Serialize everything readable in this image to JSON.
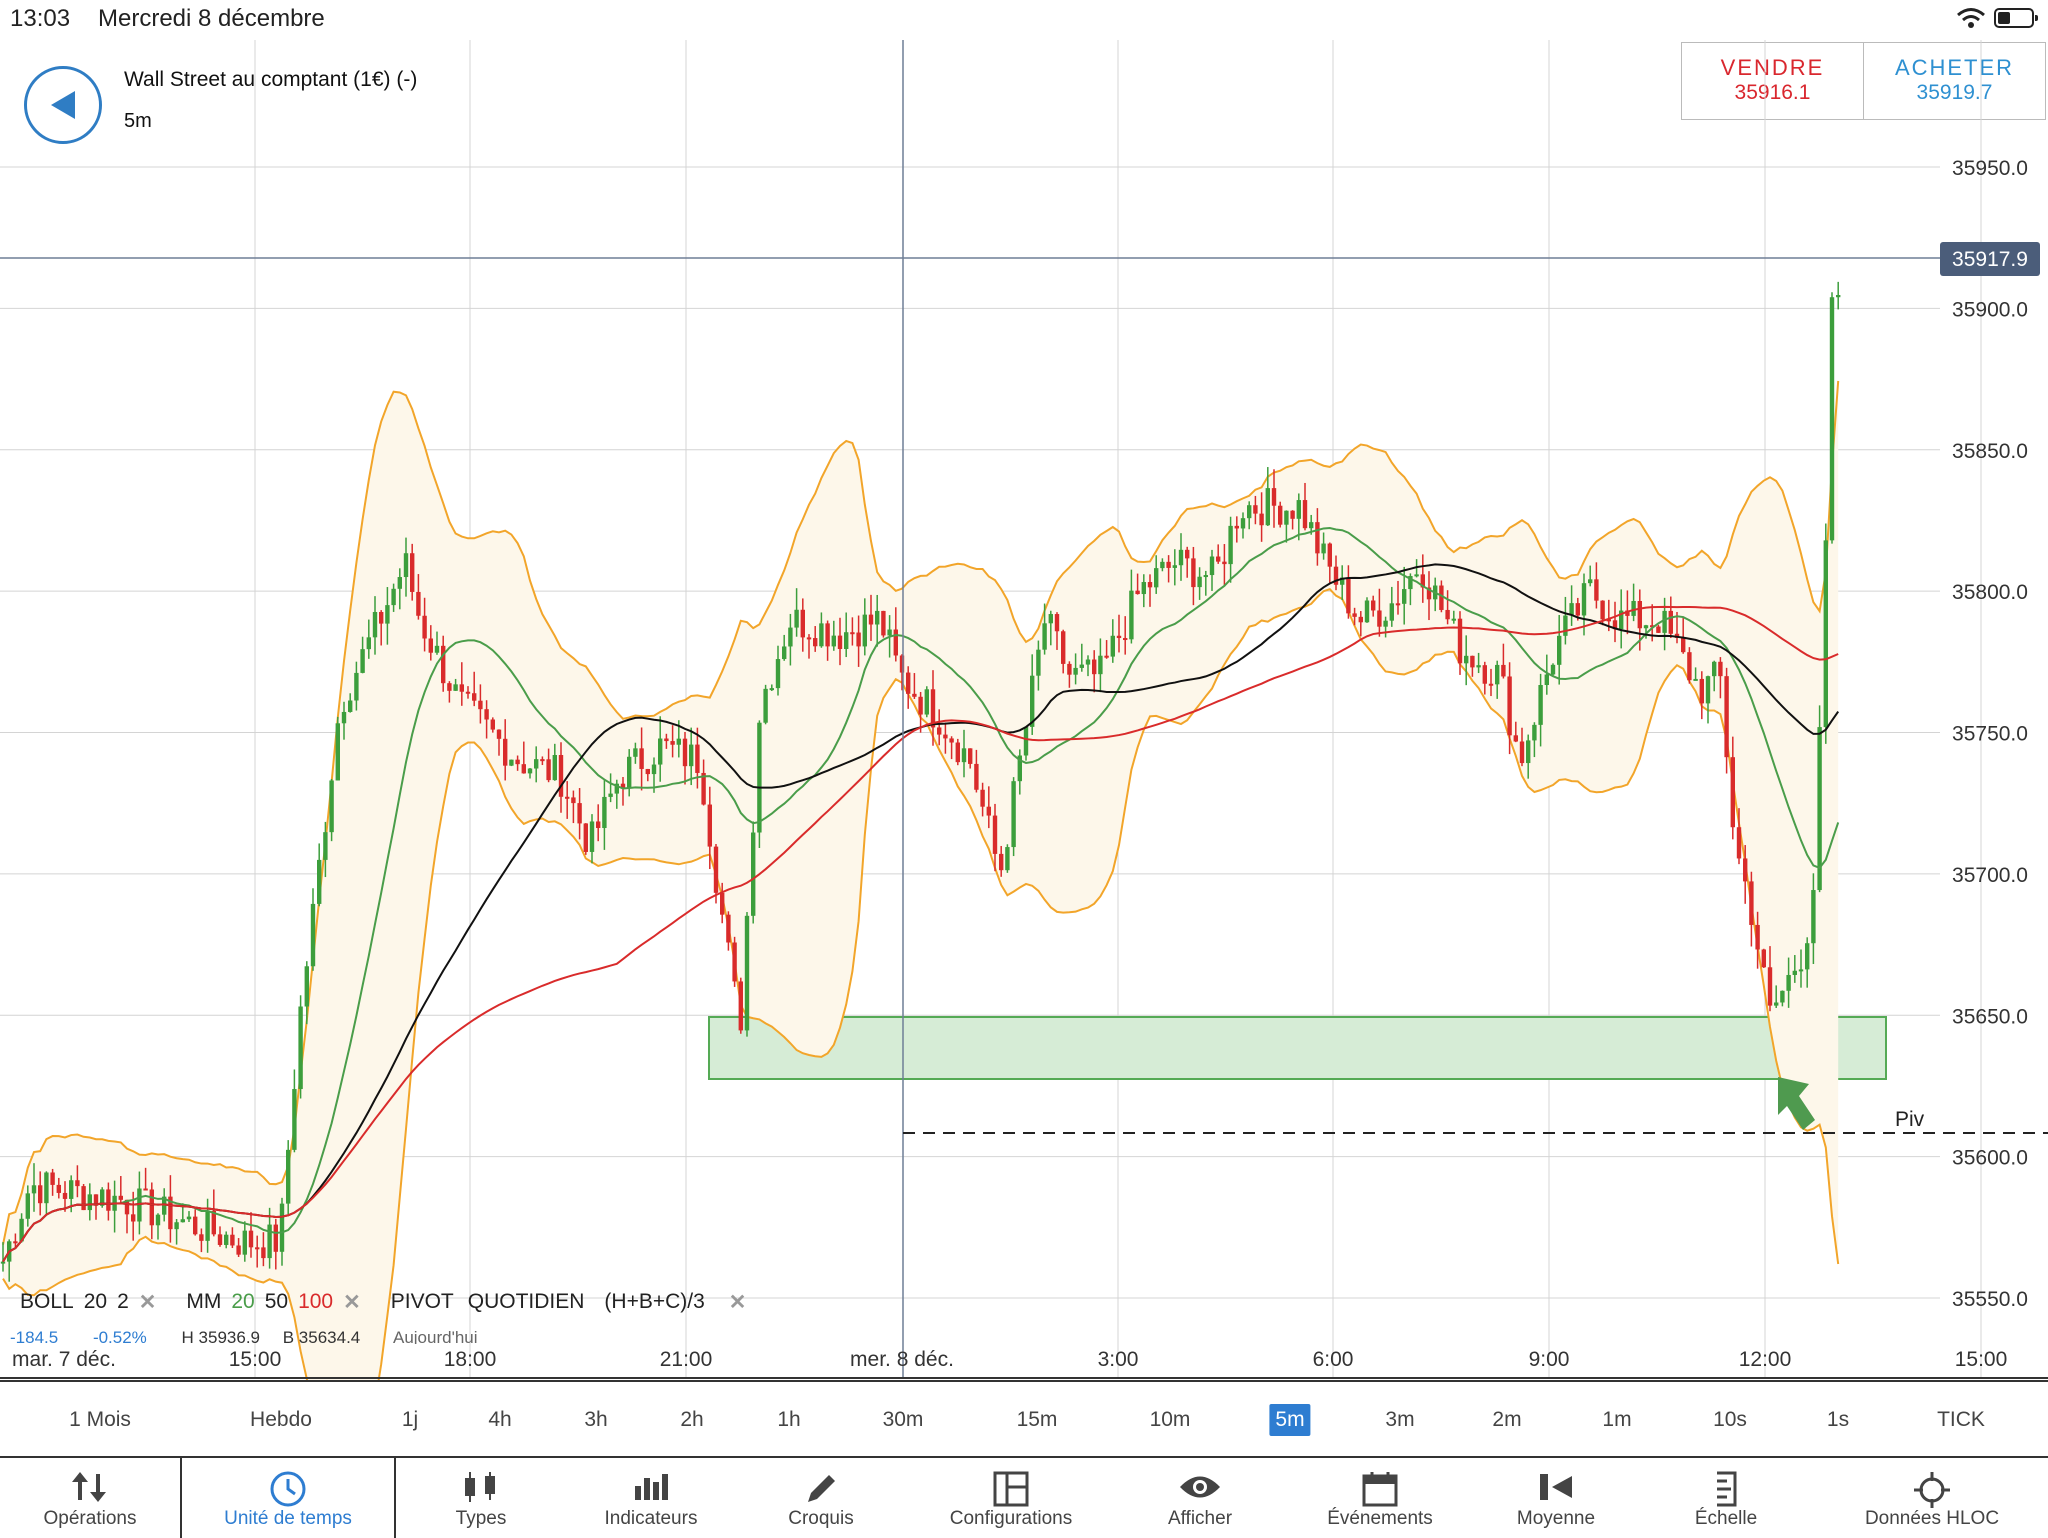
{
  "status": {
    "time": "13:03",
    "date": "Mercredi 8 décembre"
  },
  "header": {
    "instrument": "Wall Street au comptant (1€) (-)",
    "timeframe": "5m",
    "sell_label": "VENDRE",
    "sell_price": "35916.1",
    "buy_label": "ACHETER",
    "buy_price": "35919.7"
  },
  "chart": {
    "y_ticks": [
      "35950.0",
      "35900.0",
      "35850.0",
      "35800.0",
      "35750.0",
      "35700.0",
      "35650.0",
      "35600.0",
      "35550.0"
    ],
    "current_price": "35917.9",
    "pivot_label": "Piv",
    "x_ticks": [
      "mar. 7 déc.",
      "15:00",
      "18:00",
      "21:00",
      "mer. 8 déc.",
      "3:00",
      "6:00",
      "9:00",
      "12:00",
      "15:00"
    ],
    "colors": {
      "up": "#3c9e3c",
      "down": "#d92b2b",
      "boll": "#f2a52a",
      "mm20": "#4a9d4a",
      "mm50": "#111111",
      "mm100": "#d92b2b",
      "zone": "#cfe8cf"
    }
  },
  "legend": {
    "boll": "BOLL",
    "boll_p1": "20",
    "boll_p2": "2",
    "mm": "MM",
    "mm_p1": "20",
    "mm_p2": "50",
    "mm_p3": "100",
    "pivot": "PIVOT",
    "pivot_type": "QUOTIDIEN",
    "pivot_formula": "(H+B+C)/3",
    "close": "✕"
  },
  "stats": {
    "change": "-184.5",
    "pct": "-0.52%",
    "high": "H 35936.9",
    "low": "B 35634.4",
    "today": "Aujourd'hui"
  },
  "timeframes": [
    "1 Mois",
    "Hebdo",
    "1j",
    "4h",
    "3h",
    "2h",
    "1h",
    "30m",
    "15m",
    "10m",
    "5m",
    "3m",
    "2m",
    "1m",
    "10s",
    "1s",
    "TICK"
  ],
  "active_timeframe": "5m",
  "bottom_nav": [
    {
      "label": "Opérations",
      "icon": "arrows-updown-icon"
    },
    {
      "label": "Unité de temps",
      "icon": "clock-icon"
    },
    {
      "label": "Types",
      "icon": "candles-icon"
    },
    {
      "label": "Indicateurs",
      "icon": "bars-icon"
    },
    {
      "label": "Croquis",
      "icon": "pencil-icon"
    },
    {
      "label": "Configurations",
      "icon": "layout-icon"
    },
    {
      "label": "Afficher",
      "icon": "eye-icon"
    },
    {
      "label": "Événements",
      "icon": "calendar-icon"
    },
    {
      "label": "Moyenne",
      "icon": "average-icon"
    },
    {
      "label": "Échelle",
      "icon": "scale-icon"
    },
    {
      "label": "Données HLOC",
      "icon": "crosshair-icon"
    }
  ]
}
